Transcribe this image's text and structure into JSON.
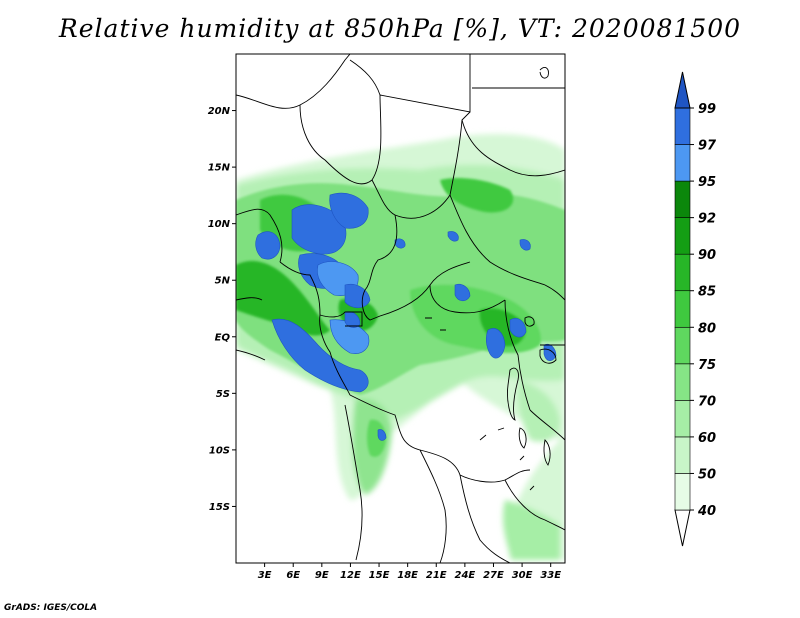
{
  "title": "Relative humidity at 850hPa [%], VT: 2020081500",
  "credit": "GrADS: IGES/COLA",
  "map": {
    "lon_range": [
      0,
      34.5
    ],
    "lat_range": [
      -20,
      25
    ],
    "lon_ticks": [
      {
        "value": 3,
        "label": "3E"
      },
      {
        "value": 6,
        "label": "6E"
      },
      {
        "value": 9,
        "label": "9E"
      },
      {
        "value": 12,
        "label": "12E"
      },
      {
        "value": 15,
        "label": "15E"
      },
      {
        "value": 18,
        "label": "18E"
      },
      {
        "value": 21,
        "label": "21E"
      },
      {
        "value": 24,
        "label": "24E"
      },
      {
        "value": 27,
        "label": "27E"
      },
      {
        "value": 30,
        "label": "30E"
      },
      {
        "value": 33,
        "label": "33E"
      }
    ],
    "lat_ticks": [
      {
        "value": 20,
        "label": "20N"
      },
      {
        "value": 15,
        "label": "15N"
      },
      {
        "value": 10,
        "label": "10N"
      },
      {
        "value": 5,
        "label": "5N"
      },
      {
        "value": 0,
        "label": "EQ"
      },
      {
        "value": -5,
        "label": "5S"
      },
      {
        "value": -10,
        "label": "10S"
      },
      {
        "value": -15,
        "label": "15S"
      }
    ]
  },
  "colorbar": {
    "levels": [
      "40",
      "50",
      "60",
      "70",
      "75",
      "80",
      "85",
      "90",
      "92",
      "95",
      "97",
      "99"
    ],
    "colors": [
      "#ffffff",
      "#e6fce6",
      "#c8f5c8",
      "#a6eea6",
      "#86e586",
      "#5fd85f",
      "#3fc93f",
      "#27b627",
      "#149e14",
      "#0b870b",
      "#4d98f2",
      "#2f6fdf",
      "#1f55c3"
    ]
  },
  "colors": {
    "rh_low": "#d6f7d6",
    "rh_med": "#7fe07f",
    "rh_high": "#27b627",
    "rh_sat": "#2f6fdf",
    "boundary": "#000000"
  }
}
